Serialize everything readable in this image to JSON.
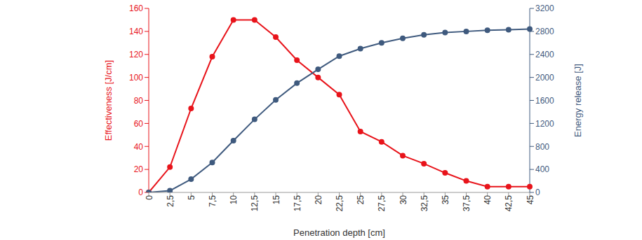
{
  "chart_data": {
    "type": "line",
    "xlabel": "Penetration depth [cm]",
    "ylabel": "Effectiveness [J/cm]",
    "y2label": "Energy release [J]",
    "categories": [
      "0",
      "2,5",
      "5",
      "7,5",
      "10",
      "12,5",
      "15",
      "17,5",
      "20",
      "22,5",
      "25",
      "27,5",
      "30",
      "32,5",
      "35",
      "37,5",
      "40",
      "42,5",
      "45"
    ],
    "ylim": [
      0,
      160
    ],
    "yticks": [
      0,
      20,
      40,
      60,
      80,
      100,
      120,
      140,
      160
    ],
    "y2lim": [
      0,
      3200
    ],
    "y2ticks": [
      0,
      400,
      800,
      1200,
      1600,
      2000,
      2400,
      2800,
      3200
    ],
    "grid": false,
    "series": [
      {
        "color": "#e8141b",
        "marker": "circle",
        "values": [
          0,
          22,
          73,
          118,
          150,
          150,
          135,
          115,
          100,
          85,
          53,
          44,
          32,
          25,
          17,
          10,
          5,
          5,
          5
        ]
      },
      {
        "color": "#3f5a7e",
        "marker": "circle",
        "axis": "y2",
        "values": [
          0,
          30,
          230,
          520,
          900,
          1270,
          1610,
          1900,
          2140,
          2370,
          2500,
          2600,
          2680,
          2740,
          2780,
          2800,
          2820,
          2830,
          2840
        ]
      }
    ]
  }
}
